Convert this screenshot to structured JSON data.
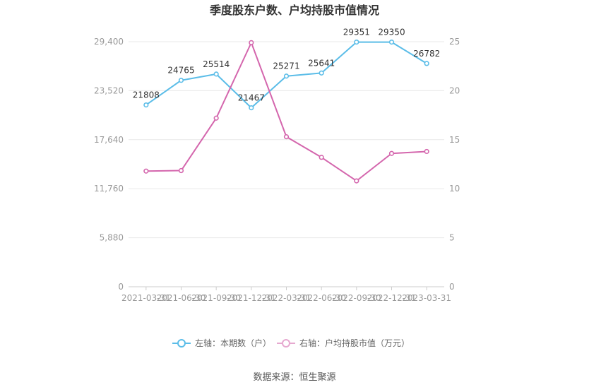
{
  "chart_data": {
    "type": "line",
    "title": "季度股东户数、户均持股市值情况",
    "categories": [
      "2021-03-31",
      "2021-06-30",
      "2021-09-30",
      "2021-12-31",
      "2022-03-31",
      "2022-06-30",
      "2022-09-30",
      "2022-12-31",
      "2023-03-31"
    ],
    "y_left": {
      "ticks": [
        "0",
        "5,880",
        "11,760",
        "17,640",
        "23,520",
        "29,400"
      ],
      "ylim": [
        0,
        29400
      ]
    },
    "y_right": {
      "ticks": [
        "0",
        "5",
        "10",
        "15",
        "20",
        "25"
      ],
      "ylim": [
        0,
        25
      ]
    },
    "series": [
      {
        "name": "左轴：本期数（户）",
        "axis": "left",
        "color": "#5bbde8",
        "values": [
          21808,
          24765,
          25514,
          21467,
          25271,
          25641,
          29351,
          29350,
          26782
        ],
        "labels": [
          "21808",
          "24765",
          "25514",
          "21467",
          "25271",
          "25641",
          "29351",
          "29350",
          "26782"
        ]
      },
      {
        "name": "右轴：户均持股市值（万元）",
        "axis": "right",
        "color": "#d466ad",
        "values": [
          11.8,
          11.85,
          17.2,
          24.9,
          15.3,
          13.2,
          10.8,
          13.6,
          13.8
        ]
      }
    ],
    "grid": true,
    "legend": "bottom-center",
    "source": "数据来源：恒生聚源"
  }
}
